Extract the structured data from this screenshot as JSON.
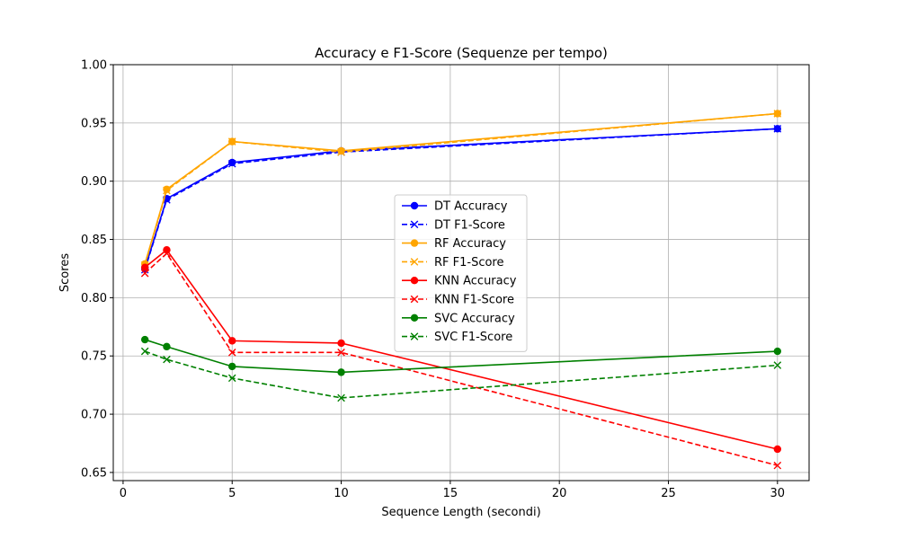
{
  "chart_data": {
    "type": "line",
    "title": "Accuracy e F1-Score (Sequenze per tempo)",
    "xlabel": "Sequence Length (secondi)",
    "ylabel": "Scores",
    "xlim": [
      -0.45,
      31.45
    ],
    "ylim": [
      0.643,
      1.0
    ],
    "xticks": [
      0,
      5,
      10,
      15,
      20,
      25,
      30
    ],
    "yticks": [
      0.65,
      0.7,
      0.75,
      0.8,
      0.85,
      0.9,
      0.95,
      1.0
    ],
    "grid": true,
    "legend_position": "center",
    "x": [
      1,
      2,
      5,
      10,
      30
    ],
    "series": [
      {
        "name": "DT Accuracy",
        "color": "#0000ff",
        "dash": "solid",
        "marker": "circle",
        "values": [
          0.825,
          0.885,
          0.916,
          0.926,
          0.945
        ]
      },
      {
        "name": "DT F1-Score",
        "color": "#0000ff",
        "dash": "dashed",
        "marker": "x",
        "values": [
          0.824,
          0.884,
          0.915,
          0.925,
          0.945
        ]
      },
      {
        "name": "RF Accuracy",
        "color": "#ffa500",
        "dash": "solid",
        "marker": "circle",
        "values": [
          0.829,
          0.893,
          0.934,
          0.926,
          0.958
        ]
      },
      {
        "name": "RF F1-Score",
        "color": "#ffa500",
        "dash": "dashed",
        "marker": "x",
        "values": [
          0.828,
          0.892,
          0.934,
          0.925,
          0.958
        ]
      },
      {
        "name": "KNN Accuracy",
        "color": "#ff0000",
        "dash": "solid",
        "marker": "circle",
        "values": [
          0.826,
          0.841,
          0.763,
          0.761,
          0.67
        ]
      },
      {
        "name": "KNN F1-Score",
        "color": "#ff0000",
        "dash": "dashed",
        "marker": "x",
        "values": [
          0.821,
          0.838,
          0.753,
          0.753,
          0.656
        ]
      },
      {
        "name": "SVC Accuracy",
        "color": "#008000",
        "dash": "solid",
        "marker": "circle",
        "values": [
          0.764,
          0.758,
          0.741,
          0.736,
          0.754
        ]
      },
      {
        "name": "SVC F1-Score",
        "color": "#008000",
        "dash": "dashed",
        "marker": "x",
        "values": [
          0.754,
          0.747,
          0.731,
          0.714,
          0.742
        ]
      }
    ]
  }
}
